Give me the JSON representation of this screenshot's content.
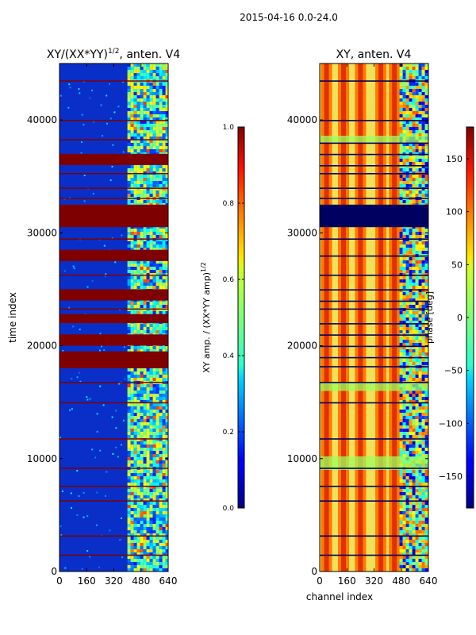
{
  "figure": {
    "suptitle": "2015-04-16 0.0-24.0"
  },
  "colors": {
    "amp_bg": "#0a2fc8",
    "flag_red": "#7f0000",
    "phase_bg": "#f1e05a",
    "phase_dark": "#000060"
  },
  "chart_data": [
    {
      "type": "heatmap",
      "title": "XY/(XX*YY)^1/2, anten. V4",
      "title_main": "XY/(XX*YY)",
      "title_sup": "1/2",
      "title_tail": ", anten. V4",
      "xlabel": "",
      "ylabel": "time index",
      "xlim": [
        0,
        640
      ],
      "ylim": [
        0,
        45000
      ],
      "xticks": [
        0,
        160,
        320,
        480,
        640
      ],
      "yticks": [
        0,
        10000,
        20000,
        30000,
        40000
      ],
      "flagged_bands": [
        [
          30500,
          32500
        ],
        [
          20000,
          21000
        ],
        [
          18000,
          19500
        ],
        [
          36000,
          37000
        ],
        [
          27500,
          28500
        ],
        [
          24000,
          25000
        ],
        [
          22000,
          22800
        ]
      ],
      "flagged_lines": [
        43500,
        40000,
        38300,
        35300,
        34000,
        33100,
        29500,
        26300,
        23300,
        16800,
        15000,
        11800,
        9200,
        7600,
        6300,
        3200,
        1500
      ],
      "high_amp_channel_range": [
        400,
        640
      ],
      "colorbar": {
        "label": "XY amp. / (XX*YY amp)^1/2",
        "label_main": "XY amp. / (XX*YY amp)",
        "label_sup": "1/2",
        "range": [
          0.0,
          1.0
        ],
        "ticks": [
          "0.0",
          "0.2",
          "0.4",
          "0.6",
          "0.8",
          "1.0"
        ],
        "colormap": "jet"
      }
    },
    {
      "type": "heatmap",
      "title": "XY, anten. V4",
      "xlabel": "channel index",
      "ylabel": "",
      "xlim": [
        0,
        640
      ],
      "ylim": [
        0,
        45000
      ],
      "xticks": [
        0,
        160,
        320,
        480,
        640
      ],
      "yticks": [
        0,
        10000,
        20000,
        30000,
        40000
      ],
      "flagged_bands": [
        [
          30500,
          32500
        ]
      ],
      "flagged_lines": [
        43500,
        40000,
        38000,
        37000,
        36000,
        35300,
        34000,
        33100,
        29500,
        28000,
        26300,
        25000,
        24000,
        23300,
        22000,
        21000,
        20000,
        19000,
        18200,
        16800,
        15000,
        11800,
        9200,
        7600,
        6300,
        3200,
        1500
      ],
      "stripe_channel_centers": [
        40,
        140,
        240,
        360,
        440
      ],
      "colorbar": {
        "label": "phase [deg]",
        "range": [
          -180,
          180
        ],
        "ticks": [
          "−150",
          "−100",
          "−50",
          "0",
          "50",
          "100",
          "150"
        ],
        "tick_values": [
          -150,
          -100,
          -50,
          0,
          50,
          100,
          150
        ],
        "colormap": "jet"
      }
    }
  ]
}
